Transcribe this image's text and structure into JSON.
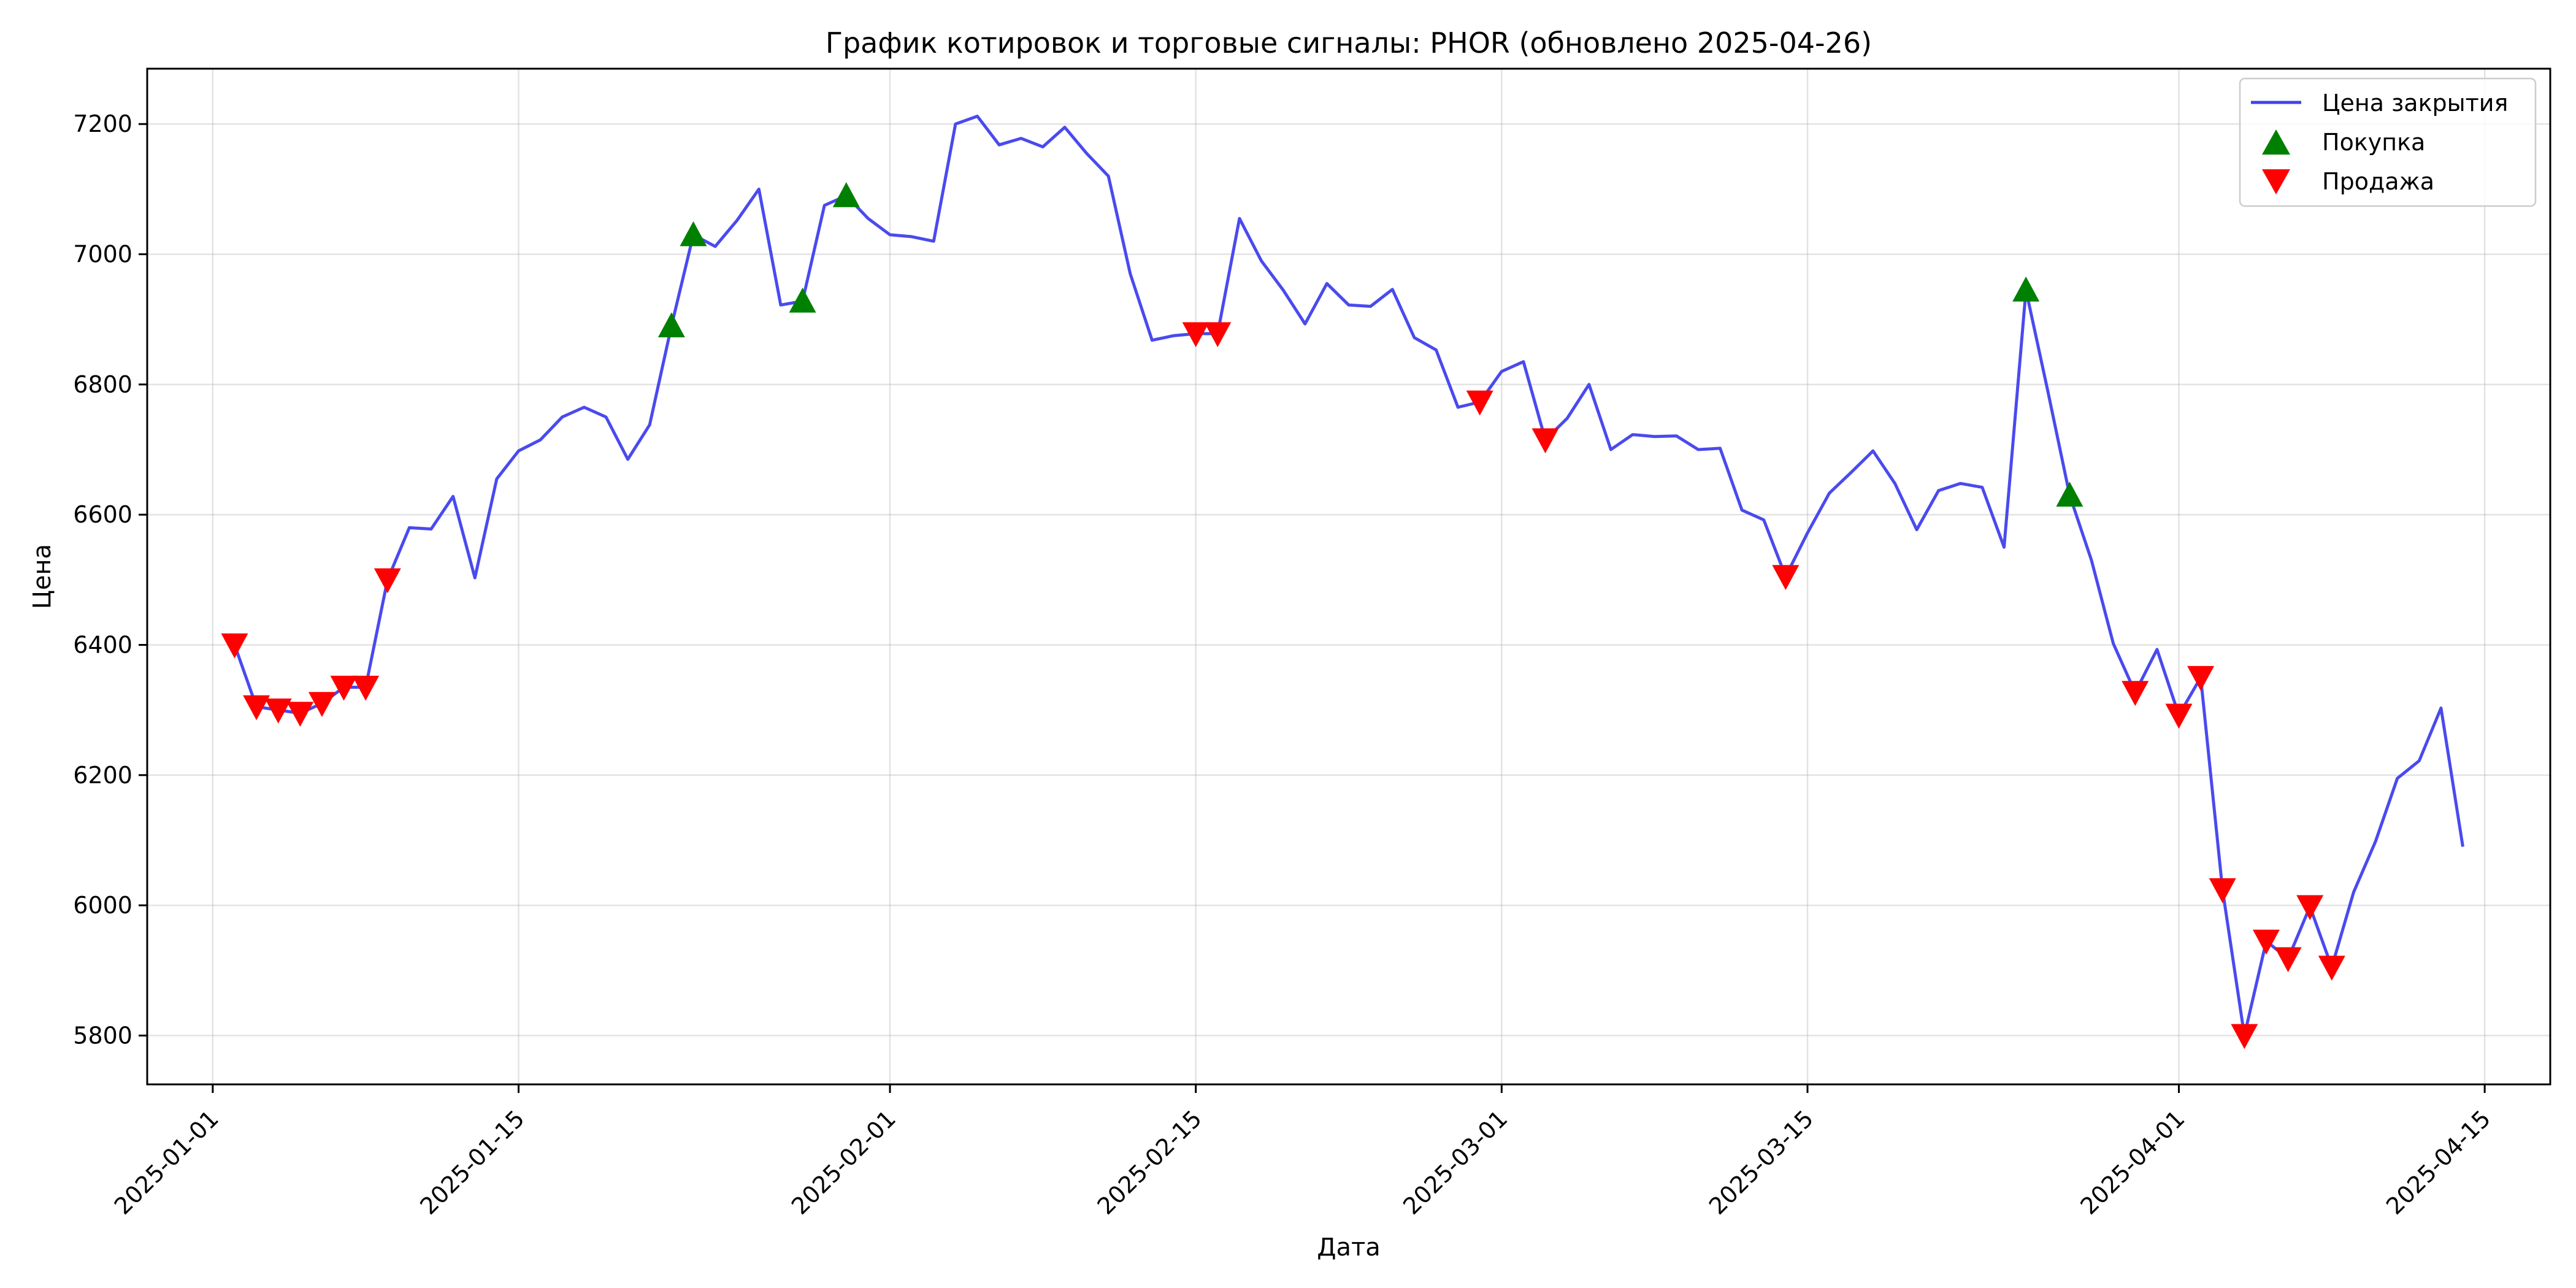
{
  "chart_data": {
    "type": "line",
    "title": "График котировок и торговые сигналы: PHOR (обновлено 2025-04-26)",
    "xlabel": "Дата",
    "ylabel": "Цена",
    "x_range": [
      "2024-12-29",
      "2025-04-18"
    ],
    "ylim": [
      5725,
      7285
    ],
    "grid": true,
    "legend_position": "top-right",
    "x_ticks": [
      "2025-01-01",
      "2025-01-15",
      "2025-02-01",
      "2025-02-15",
      "2025-03-01",
      "2025-03-15",
      "2025-04-01",
      "2025-04-15"
    ],
    "y_ticks": [
      5800,
      6000,
      6200,
      6400,
      6600,
      6800,
      7000,
      7200
    ],
    "colors": {
      "close": "#4040ee",
      "buy": "#008000",
      "sell": "#ff0000"
    },
    "series": [
      {
        "name": "Цена закрытия",
        "marker": "line",
        "points": [
          [
            "2025-01-02",
            6400
          ],
          [
            "2025-01-03",
            6305
          ],
          [
            "2025-01-04",
            6300
          ],
          [
            "2025-01-05",
            6295
          ],
          [
            "2025-01-06",
            6310
          ],
          [
            "2025-01-07",
            6335
          ],
          [
            "2025-01-08",
            6335
          ],
          [
            "2025-01-09",
            6500
          ],
          [
            "2025-01-10",
            6580
          ],
          [
            "2025-01-11",
            6578
          ],
          [
            "2025-01-12",
            6628
          ],
          [
            "2025-01-13",
            6503
          ],
          [
            "2025-01-14",
            6655
          ],
          [
            "2025-01-15",
            6698
          ],
          [
            "2025-01-16",
            6715
          ],
          [
            "2025-01-17",
            6750
          ],
          [
            "2025-01-18",
            6765
          ],
          [
            "2025-01-19",
            6750
          ],
          [
            "2025-01-20",
            6685
          ],
          [
            "2025-01-21",
            6738
          ],
          [
            "2025-01-22",
            6890
          ],
          [
            "2025-01-23",
            7030
          ],
          [
            "2025-01-24",
            7012
          ],
          [
            "2025-01-25",
            7052
          ],
          [
            "2025-01-26",
            7100
          ],
          [
            "2025-01-27",
            6922
          ],
          [
            "2025-01-28",
            6928
          ],
          [
            "2025-01-29",
            7075
          ],
          [
            "2025-01-30",
            7090
          ],
          [
            "2025-01-31",
            7055
          ],
          [
            "2025-02-01",
            7030
          ],
          [
            "2025-02-02",
            7027
          ],
          [
            "2025-02-03",
            7020
          ],
          [
            "2025-02-04",
            7200
          ],
          [
            "2025-02-05",
            7212
          ],
          [
            "2025-02-06",
            7168
          ],
          [
            "2025-02-07",
            7178
          ],
          [
            "2025-02-08",
            7165
          ],
          [
            "2025-02-09",
            7195
          ],
          [
            "2025-02-10",
            7155
          ],
          [
            "2025-02-11",
            7120
          ],
          [
            "2025-02-12",
            6970
          ],
          [
            "2025-02-13",
            6868
          ],
          [
            "2025-02-14",
            6875
          ],
          [
            "2025-02-15",
            6878
          ],
          [
            "2025-02-16",
            6878
          ],
          [
            "2025-02-17",
            7055
          ],
          [
            "2025-02-18",
            6990
          ],
          [
            "2025-02-19",
            6945
          ],
          [
            "2025-02-20",
            6893
          ],
          [
            "2025-02-21",
            6955
          ],
          [
            "2025-02-22",
            6922
          ],
          [
            "2025-02-23",
            6920
          ],
          [
            "2025-02-24",
            6946
          ],
          [
            "2025-02-25",
            6872
          ],
          [
            "2025-02-26",
            6853
          ],
          [
            "2025-02-27",
            6765
          ],
          [
            "2025-02-28",
            6773
          ],
          [
            "2025-03-01",
            6820
          ],
          [
            "2025-03-02",
            6835
          ],
          [
            "2025-03-03",
            6715
          ],
          [
            "2025-03-04",
            6748
          ],
          [
            "2025-03-05",
            6800
          ],
          [
            "2025-03-06",
            6700
          ],
          [
            "2025-03-07",
            6723
          ],
          [
            "2025-03-08",
            6720
          ],
          [
            "2025-03-09",
            6721
          ],
          [
            "2025-03-10",
            6700
          ],
          [
            "2025-03-11",
            6702
          ],
          [
            "2025-03-12",
            6607
          ],
          [
            "2025-03-13",
            6592
          ],
          [
            "2025-03-14",
            6505
          ],
          [
            "2025-03-15",
            6572
          ],
          [
            "2025-03-16",
            6633
          ],
          [
            "2025-03-17",
            6665
          ],
          [
            "2025-03-18",
            6698
          ],
          [
            "2025-03-19",
            6648
          ],
          [
            "2025-03-20",
            6577
          ],
          [
            "2025-03-21",
            6637
          ],
          [
            "2025-03-22",
            6648
          ],
          [
            "2025-03-23",
            6642
          ],
          [
            "2025-03-24",
            6550
          ],
          [
            "2025-03-25",
            6945
          ],
          [
            "2025-03-26",
            6790
          ],
          [
            "2025-03-27",
            6630
          ],
          [
            "2025-03-28",
            6530
          ],
          [
            "2025-03-29",
            6402
          ],
          [
            "2025-03-30",
            6327
          ],
          [
            "2025-03-31",
            6393
          ],
          [
            "2025-04-01",
            6292
          ],
          [
            "2025-04-02",
            6350
          ],
          [
            "2025-04-03",
            6024
          ],
          [
            "2025-04-04",
            5800
          ],
          [
            "2025-04-05",
            5945
          ],
          [
            "2025-04-06",
            5918
          ],
          [
            "2025-04-07",
            5998
          ],
          [
            "2025-04-08",
            5905
          ],
          [
            "2025-04-09",
            6020
          ],
          [
            "2025-04-10",
            6098
          ],
          [
            "2025-04-11",
            6195
          ],
          [
            "2025-04-12",
            6222
          ],
          [
            "2025-04-13",
            6303
          ],
          [
            "2025-04-14",
            6090
          ]
        ]
      },
      {
        "name": "Покупка",
        "marker": "triangle-up",
        "points": [
          [
            "2025-01-22",
            6890
          ],
          [
            "2025-01-23",
            7030
          ],
          [
            "2025-01-28",
            6928
          ],
          [
            "2025-01-30",
            7090
          ],
          [
            "2025-03-25",
            6945
          ],
          [
            "2025-03-27",
            6630
          ]
        ]
      },
      {
        "name": "Продажа",
        "marker": "triangle-down",
        "points": [
          [
            "2025-01-02",
            6400
          ],
          [
            "2025-01-03",
            6305
          ],
          [
            "2025-01-04",
            6300
          ],
          [
            "2025-01-05",
            6295
          ],
          [
            "2025-01-06",
            6310
          ],
          [
            "2025-01-07",
            6335
          ],
          [
            "2025-01-08",
            6335
          ],
          [
            "2025-01-09",
            6500
          ],
          [
            "2025-02-15",
            6878
          ],
          [
            "2025-02-16",
            6878
          ],
          [
            "2025-02-28",
            6773
          ],
          [
            "2025-03-03",
            6715
          ],
          [
            "2025-03-14",
            6505
          ],
          [
            "2025-03-30",
            6327
          ],
          [
            "2025-04-01",
            6292
          ],
          [
            "2025-04-02",
            6350
          ],
          [
            "2025-04-03",
            6024
          ],
          [
            "2025-04-04",
            5800
          ],
          [
            "2025-04-05",
            5945
          ],
          [
            "2025-04-06",
            5918
          ],
          [
            "2025-04-07",
            5998
          ],
          [
            "2025-04-08",
            5905
          ]
        ]
      }
    ]
  }
}
